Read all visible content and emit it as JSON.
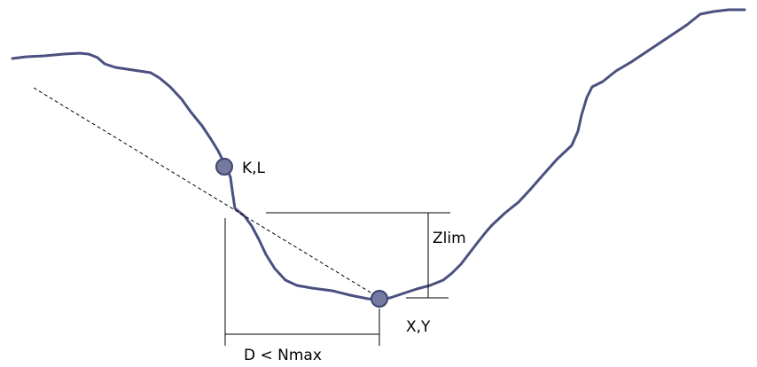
{
  "labels": {
    "point_kl": "K,L",
    "zlim": "Zlim",
    "point_xy": "X,Y",
    "distance": "D < Nmax"
  },
  "colors": {
    "profile_line": "#4a5080",
    "point_fill": "#7479a0",
    "point_stroke": "#3f4570",
    "guide_lines": "#000000"
  }
}
